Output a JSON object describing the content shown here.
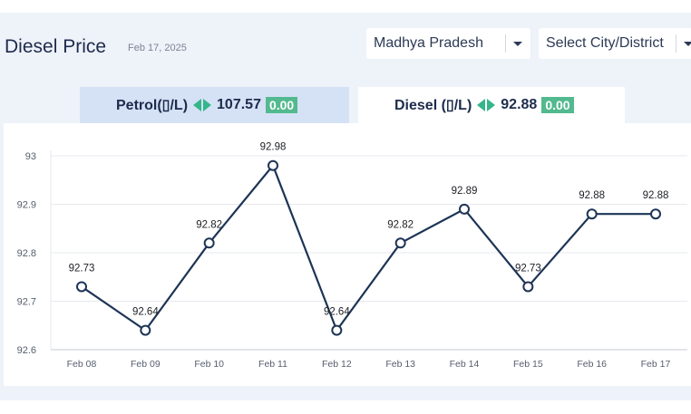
{
  "header": {
    "title": "Diesel Price",
    "date": "Feb 17, 2025"
  },
  "filters": {
    "state": "Madhya Pradesh",
    "city_placeholder": "Select City/District"
  },
  "tabs": {
    "petrol": {
      "label": "Petrol(▯/L)",
      "price": "107.57",
      "change": "0.00"
    },
    "diesel": {
      "label": "Diesel (▯/L)",
      "price": "92.88",
      "change": "0.00"
    }
  },
  "colors": {
    "line": "#1d3456",
    "change_badge": "#53b98f",
    "change_arrows": "#36b58a",
    "active_tab": "#ffffff",
    "inactive_tab": "#d5e2f5"
  },
  "chart_data": {
    "type": "line",
    "categories": [
      "Feb 08",
      "Feb 09",
      "Feb 10",
      "Feb 11",
      "Feb 12",
      "Feb 13",
      "Feb 14",
      "Feb 15",
      "Feb 16",
      "Feb 17"
    ],
    "values": [
      92.73,
      92.64,
      92.82,
      92.98,
      92.64,
      92.82,
      92.89,
      92.73,
      92.88,
      92.88
    ],
    "data_labels": [
      "92.73",
      "92.64",
      "92.82",
      "92.98",
      "92.64",
      "92.82",
      "92.89",
      "92.73",
      "92.88",
      "92.88"
    ],
    "ylim": [
      92.6,
      93.0
    ],
    "y_ticks": [
      "92.6",
      "92.7",
      "92.8",
      "92.9",
      "93"
    ],
    "grid": true
  }
}
